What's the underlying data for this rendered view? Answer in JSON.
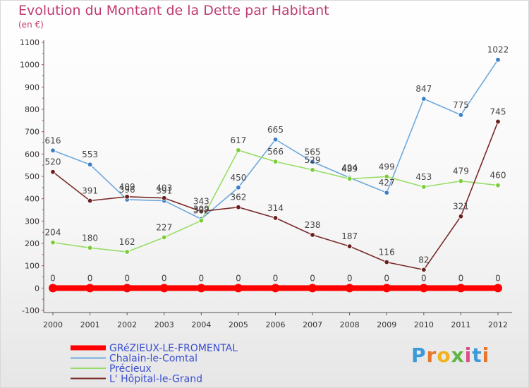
{
  "title": "Evolution du Montant de la Dette par Habitant",
  "unit_label": "(en €)",
  "logo_text": "Proxiti",
  "chart_data": {
    "type": "line",
    "title": "Evolution du Montant de la Dette par Habitant",
    "ylabel": "(en €)",
    "xlabel": "",
    "x": [
      "2000",
      "2001",
      "2002",
      "2003",
      "2004",
      "2005",
      "2006",
      "2007",
      "2008",
      "2009",
      "2010",
      "2011",
      "2012"
    ],
    "ylim": [
      -100,
      1100
    ],
    "yticks": [
      -100,
      0,
      100,
      200,
      300,
      400,
      500,
      600,
      700,
      800,
      900,
      1000,
      1100
    ],
    "grid": false,
    "legend": "bottom-left",
    "series": [
      {
        "name": "GRéZIEUX-LE-FROMENTAL",
        "color": "#ff0000",
        "values": [
          0,
          0,
          0,
          0,
          0,
          0,
          0,
          0,
          0,
          0,
          0,
          0,
          0
        ]
      },
      {
        "name": "Chalain-le-Comtal",
        "color": "#6fa8dc",
        "values": [
          616,
          553,
          396,
          391,
          309,
          450,
          665,
          565,
          494,
          427,
          847,
          775,
          1022
        ]
      },
      {
        "name": "Précieux",
        "color": "#99dd66",
        "values": [
          204,
          180,
          162,
          227,
          302,
          617,
          566,
          529,
          489,
          499,
          453,
          479,
          460
        ]
      },
      {
        "name": "L' Hôpital-le-Grand",
        "color": "#7a2a2a",
        "values": [
          520,
          391,
          409,
          403,
          343,
          362,
          314,
          238,
          187,
          116,
          82,
          321,
          745
        ]
      }
    ]
  }
}
